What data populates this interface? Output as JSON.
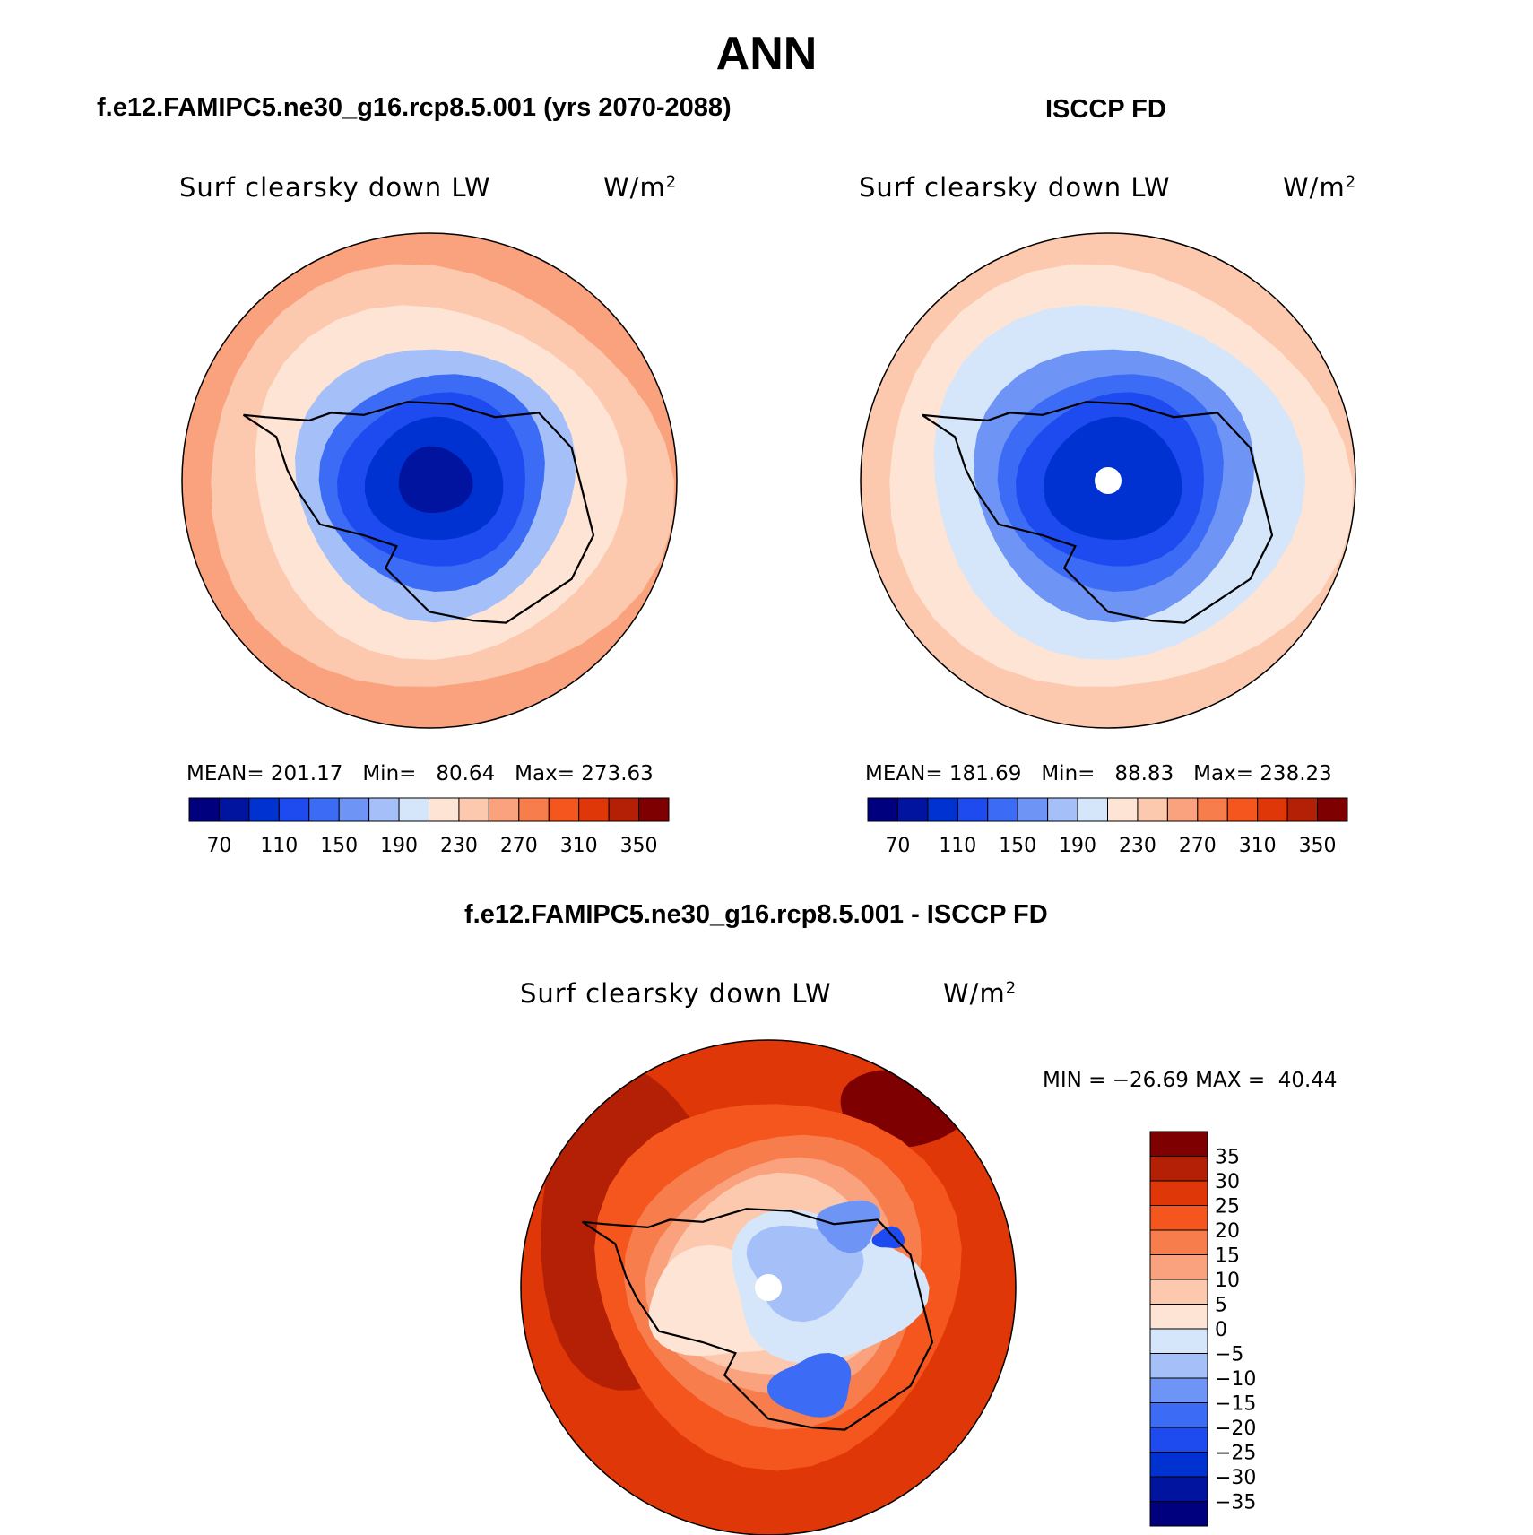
{
  "main_title": "ANN",
  "chart_data": [
    {
      "type": "heatmap",
      "projection": "south-polar-stereographic",
      "panel": "test",
      "title": "f.e12.FAMIPC5.ne30_g16.rcp8.5.001 (yrs 2070-2088)",
      "variable": "Surf clearsky down LW",
      "units": "W/m2",
      "mean_label": "MEAN=",
      "mean": "201.17",
      "min_label": "Min=",
      "min": "80.64",
      "max_label": "Max=",
      "max": "273.63",
      "levels": [
        60,
        70,
        90,
        110,
        130,
        150,
        170,
        190,
        210,
        230,
        250,
        270,
        290,
        310,
        330,
        350
      ],
      "tick_labels": [
        "70",
        "110",
        "150",
        "190",
        "230",
        "270",
        "310",
        "350"
      ],
      "regions": [
        {
          "value": 255,
          "description": "outer ocean ring"
        },
        {
          "value": 235,
          "description": "middle ocean ring"
        },
        {
          "value": 215,
          "description": "inner ocean ring"
        },
        {
          "value": 180,
          "description": "coastal ring"
        },
        {
          "value": 140,
          "description": "coastal Antarctica"
        },
        {
          "value": 120,
          "description": "inner Antarctica"
        },
        {
          "value": 100,
          "description": "East Antarctic plateau"
        },
        {
          "value": 85,
          "description": "plateau minimum"
        }
      ]
    },
    {
      "type": "heatmap",
      "projection": "south-polar-stereographic",
      "panel": "obs",
      "title": "ISCCP FD",
      "variable": "Surf clearsky down LW",
      "units": "W/m2",
      "mean_label": "MEAN=",
      "mean": "181.69",
      "min_label": "Min=",
      "min": "88.83",
      "max_label": "Max=",
      "max": "238.23",
      "levels": [
        60,
        70,
        90,
        110,
        130,
        150,
        170,
        190,
        210,
        230,
        250,
        270,
        290,
        310,
        330,
        350
      ],
      "tick_labels": [
        "70",
        "110",
        "150",
        "190",
        "230",
        "270",
        "310",
        "350"
      ],
      "regions": [
        {
          "value": 235,
          "description": "outer ocean ring"
        },
        {
          "value": 215,
          "description": "middle ocean ring"
        },
        {
          "value": 200,
          "description": "inner ocean ring"
        },
        {
          "value": 160,
          "description": "coastal ring"
        },
        {
          "value": 140,
          "description": "coastal Antarctica"
        },
        {
          "value": 120,
          "description": "inner Antarctica"
        },
        {
          "value": 100,
          "description": "plateau"
        },
        {
          "value": 95,
          "description": "plateau minimum"
        }
      ]
    },
    {
      "type": "heatmap",
      "projection": "south-polar-stereographic",
      "panel": "diff",
      "title": "f.e12.FAMIPC5.ne30_g16.rcp8.5.001 - ISCCP FD",
      "variable": "Surf clearsky down LW",
      "units": "W/m2",
      "min_label": "MIN =",
      "min": "−26.69",
      "max_label": "MAX =",
      "max": "40.44",
      "levels": [
        -40,
        -35,
        -30,
        -25,
        -20,
        -15,
        -10,
        -5,
        0,
        5,
        10,
        15,
        20,
        25,
        30,
        35,
        40
      ],
      "tick_labels": [
        "35",
        "30",
        "25",
        "20",
        "15",
        "10",
        "5",
        "0",
        "−5",
        "−10",
        "−15",
        "−20",
        "−25",
        "−30",
        "−35"
      ],
      "regions": [
        {
          "value": 28,
          "description": "mid-latitude ocean"
        },
        {
          "value": 32,
          "description": "Pacific sector band"
        },
        {
          "value": 38,
          "description": "Indian ocean maximum"
        },
        {
          "value": 22,
          "description": "subpolar ocean"
        },
        {
          "value": 17,
          "description": "sea ice ring"
        },
        {
          "value": 12,
          "description": "coastal ring"
        },
        {
          "value": 7,
          "description": "Antarctic coast"
        },
        {
          "value": 2,
          "description": "West Antarctica"
        },
        {
          "value": -3,
          "description": "East Antarctica"
        },
        {
          "value": -8,
          "description": "East Antarctic interior"
        },
        {
          "value": -13,
          "description": "negative patches"
        },
        {
          "value": -18,
          "description": "negative patches strong"
        },
        {
          "value": -23,
          "description": "negative minimum"
        }
      ]
    }
  ],
  "colors": {
    "bluered": [
      "#00007f",
      "#0014a0",
      "#0032d2",
      "#1e4bf0",
      "#3c6cf5",
      "#6e94f5",
      "#a5c0f8",
      "#d5e6fb",
      "#fde4d5",
      "#fcc9ae",
      "#f9a27d",
      "#f77d4d",
      "#f4561d",
      "#e03708",
      "#b42005",
      "#7f0000"
    ],
    "diff": [
      "#00007f",
      "#0014a0",
      "#0032d2",
      "#1e4bf0",
      "#3c6cf5",
      "#6e94f5",
      "#a5c0f8",
      "#d5e6fb",
      "#fde4d5",
      "#fcc9ae",
      "#f9a27d",
      "#f77d4d",
      "#f4561d",
      "#e03708",
      "#b42005",
      "#7f0000"
    ],
    "missing": "#ffffff",
    "coast": "#000000"
  }
}
